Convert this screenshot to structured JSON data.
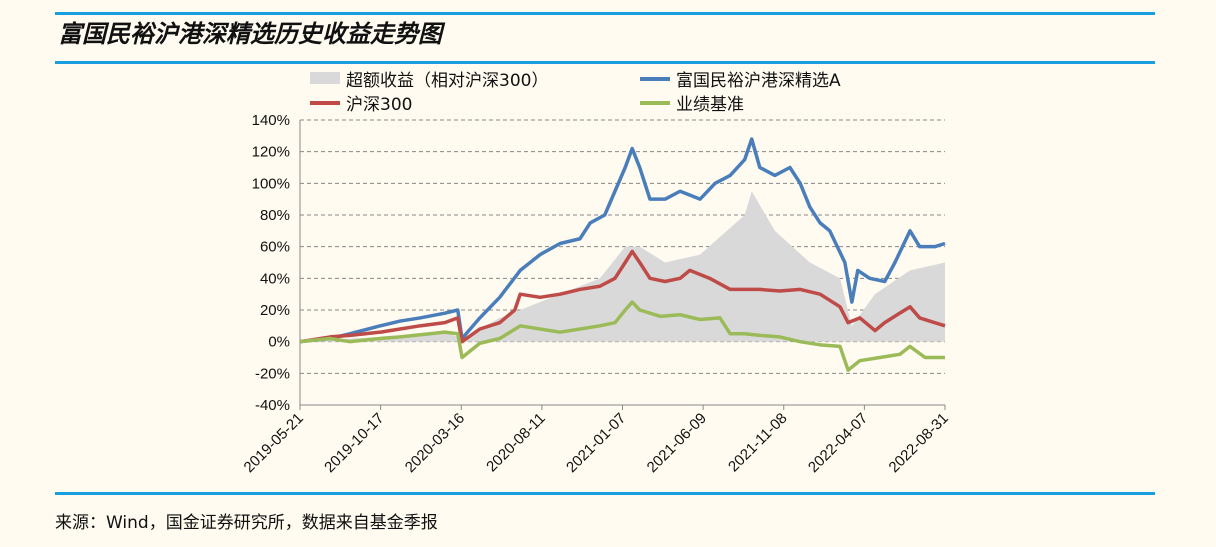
{
  "title": "富国民裕沪港深精选历史收益走势图",
  "source": "来源：Wind，国金证券研究所，数据来自基金季报",
  "chart_data": {
    "type": "line",
    "x_unit": "days since 2019-05-21",
    "ylim": [
      -40,
      140
    ],
    "yticks": [
      -40,
      -20,
      0,
      20,
      40,
      60,
      80,
      100,
      120,
      140
    ],
    "ytick_labels": [
      "-40%",
      "-20%",
      "0%",
      "20%",
      "40%",
      "60%",
      "80%",
      "100%",
      "120%",
      "140%"
    ],
    "xtick_labels": [
      "2019-05-21",
      "2019-10-17",
      "2020-03-16",
      "2020-08-11",
      "2021-01-07",
      "2021-06-09",
      "2021-11-08",
      "2022-04-07",
      "2022-08-31"
    ],
    "xlim": [
      0,
      1198
    ],
    "grid": true,
    "legend_position": "top",
    "series": [
      {
        "name": "超额收益（相对沪深300）",
        "kind": "area",
        "color": "#d9d9d9",
        "points": [
          [
            0,
            0
          ],
          [
            149,
            3
          ],
          [
            269,
            6
          ],
          [
            301,
            2
          ],
          [
            371,
            15
          ],
          [
            409,
            20
          ],
          [
            483,
            30
          ],
          [
            557,
            40
          ],
          [
            604,
            60
          ],
          [
            631,
            60
          ],
          [
            678,
            50
          ],
          [
            743,
            55
          ],
          [
            826,
            80
          ],
          [
            839,
            95
          ],
          [
            882,
            70
          ],
          [
            947,
            50
          ],
          [
            1003,
            40
          ],
          [
            1025,
            10
          ],
          [
            1068,
            30
          ],
          [
            1133,
            45
          ],
          [
            1198,
            50
          ]
        ]
      },
      {
        "name": "富国民裕沪港深精选A",
        "kind": "line",
        "color": "#4a7ebb",
        "points": [
          [
            0,
            0
          ],
          [
            56,
            2
          ],
          [
            93,
            5
          ],
          [
            149,
            10
          ],
          [
            186,
            13
          ],
          [
            223,
            15
          ],
          [
            269,
            18
          ],
          [
            293,
            20
          ],
          [
            301,
            2
          ],
          [
            334,
            15
          ],
          [
            371,
            28
          ],
          [
            409,
            45
          ],
          [
            446,
            55
          ],
          [
            483,
            62
          ],
          [
            520,
            65
          ],
          [
            539,
            75
          ],
          [
            566,
            80
          ],
          [
            585,
            95
          ],
          [
            604,
            110
          ],
          [
            617,
            122
          ],
          [
            631,
            110
          ],
          [
            650,
            90
          ],
          [
            678,
            90
          ],
          [
            706,
            95
          ],
          [
            743,
            90
          ],
          [
            771,
            100
          ],
          [
            799,
            105
          ],
          [
            826,
            115
          ],
          [
            839,
            128
          ],
          [
            854,
            110
          ],
          [
            882,
            105
          ],
          [
            910,
            110
          ],
          [
            929,
            100
          ],
          [
            947,
            85
          ],
          [
            966,
            75
          ],
          [
            984,
            70
          ],
          [
            1012,
            50
          ],
          [
            1025,
            25
          ],
          [
            1036,
            45
          ],
          [
            1058,
            40
          ],
          [
            1086,
            38
          ],
          [
            1105,
            50
          ],
          [
            1133,
            70
          ],
          [
            1151,
            60
          ],
          [
            1179,
            60
          ],
          [
            1198,
            62
          ]
        ]
      },
      {
        "name": "沪深300",
        "kind": "line",
        "color": "#be4b48",
        "points": [
          [
            0,
            0
          ],
          [
            56,
            3
          ],
          [
            93,
            4
          ],
          [
            149,
            6
          ],
          [
            186,
            8
          ],
          [
            223,
            10
          ],
          [
            269,
            12
          ],
          [
            293,
            15
          ],
          [
            301,
            0
          ],
          [
            334,
            8
          ],
          [
            371,
            12
          ],
          [
            399,
            20
          ],
          [
            409,
            30
          ],
          [
            446,
            28
          ],
          [
            483,
            30
          ],
          [
            520,
            33
          ],
          [
            557,
            35
          ],
          [
            585,
            40
          ],
          [
            604,
            50
          ],
          [
            617,
            57
          ],
          [
            631,
            50
          ],
          [
            650,
            40
          ],
          [
            678,
            38
          ],
          [
            706,
            40
          ],
          [
            724,
            45
          ],
          [
            761,
            40
          ],
          [
            799,
            33
          ],
          [
            826,
            33
          ],
          [
            854,
            33
          ],
          [
            891,
            32
          ],
          [
            929,
            33
          ],
          [
            966,
            30
          ],
          [
            1003,
            22
          ],
          [
            1018,
            12
          ],
          [
            1040,
            15
          ],
          [
            1068,
            7
          ],
          [
            1086,
            12
          ],
          [
            1114,
            18
          ],
          [
            1133,
            22
          ],
          [
            1151,
            15
          ],
          [
            1179,
            12
          ],
          [
            1198,
            10
          ]
        ]
      },
      {
        "name": "业绩基准",
        "kind": "line",
        "color": "#9bbb59",
        "points": [
          [
            0,
            0
          ],
          [
            56,
            2
          ],
          [
            93,
            0
          ],
          [
            149,
            2
          ],
          [
            186,
            3
          ],
          [
            241,
            5
          ],
          [
            269,
            6
          ],
          [
            293,
            5
          ],
          [
            301,
            -10
          ],
          [
            334,
            -1
          ],
          [
            371,
            2
          ],
          [
            409,
            10
          ],
          [
            446,
            8
          ],
          [
            483,
            6
          ],
          [
            520,
            8
          ],
          [
            557,
            10
          ],
          [
            585,
            12
          ],
          [
            604,
            20
          ],
          [
            617,
            25
          ],
          [
            631,
            20
          ],
          [
            669,
            16
          ],
          [
            706,
            17
          ],
          [
            743,
            14
          ],
          [
            780,
            15
          ],
          [
            799,
            5
          ],
          [
            826,
            5
          ],
          [
            854,
            4
          ],
          [
            891,
            3
          ],
          [
            929,
            0
          ],
          [
            966,
            -2
          ],
          [
            1003,
            -3
          ],
          [
            1018,
            -18
          ],
          [
            1040,
            -12
          ],
          [
            1077,
            -10
          ],
          [
            1114,
            -8
          ],
          [
            1133,
            -3
          ],
          [
            1161,
            -10
          ],
          [
            1198,
            -10
          ]
        ]
      }
    ]
  }
}
